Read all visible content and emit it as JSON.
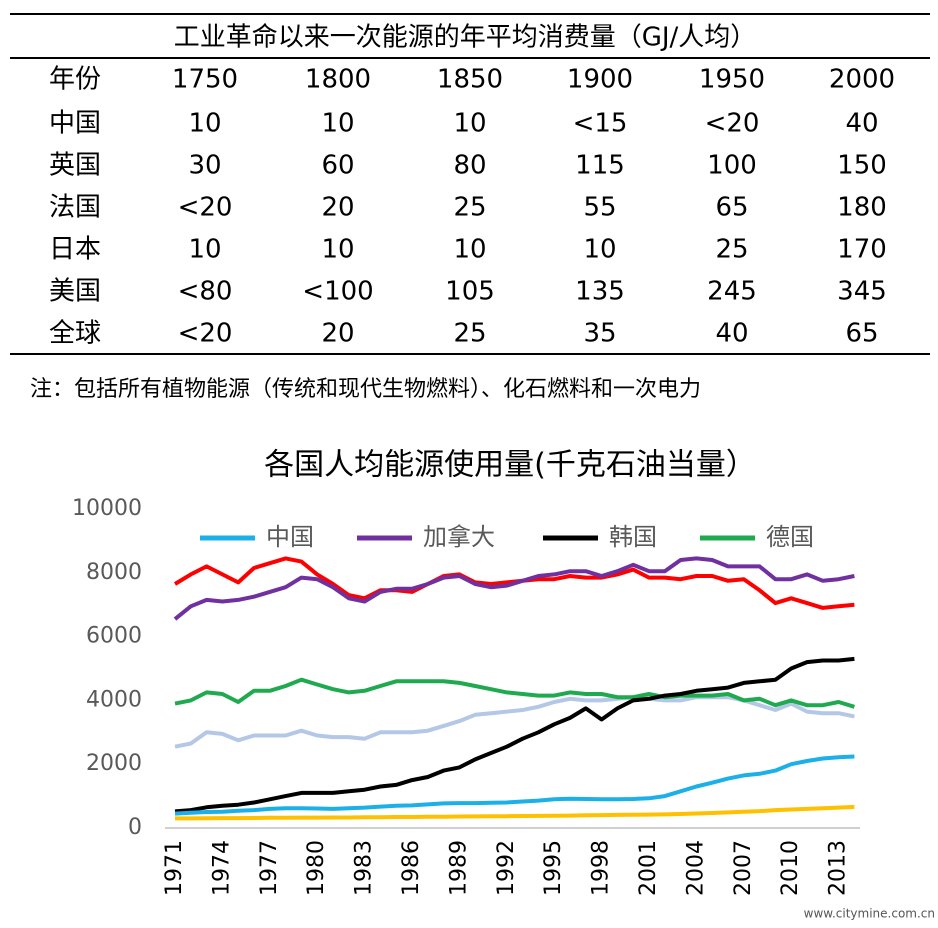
{
  "table": {
    "title": "工业革命以来一次能源的年平均消费量（GJ/人均）",
    "header": [
      "年份",
      "1750",
      "1800",
      "1850",
      "1900",
      "1950",
      "2000"
    ],
    "rows": [
      [
        "中国",
        "10",
        "10",
        "10",
        "<15",
        "<20",
        "40"
      ],
      [
        "英国",
        "30",
        "60",
        "80",
        "115",
        "100",
        "150"
      ],
      [
        "法国",
        "<20",
        "20",
        "25",
        "55",
        "65",
        "180"
      ],
      [
        "日本",
        "10",
        "10",
        "10",
        "10",
        "25",
        "170"
      ],
      [
        "美国",
        "<80",
        "<100",
        "105",
        "135",
        "245",
        "345"
      ],
      [
        "全球",
        "<20",
        "20",
        "25",
        "35",
        "40",
        "65"
      ]
    ]
  },
  "note": "注：包括所有植物能源（传统和现代生物燃料）、化石燃料和一次电力",
  "chart_data": {
    "type": "line",
    "title": "各国人均能源使用量(千克石油当量）",
    "categories": [
      1971,
      null,
      null,
      1974,
      null,
      null,
      1977,
      null,
      null,
      1980,
      null,
      null,
      1983,
      null,
      null,
      1986,
      null,
      null,
      1989,
      null,
      null,
      1992,
      null,
      null,
      1995,
      null,
      null,
      1998,
      null,
      null,
      2001,
      null,
      null,
      2004,
      null,
      null,
      2007,
      null,
      null,
      2010,
      null,
      null,
      2013,
      null
    ],
    "ylim": [
      0,
      10000
    ],
    "yticks": [
      0,
      2000,
      4000,
      6000,
      8000,
      10000
    ],
    "grid": false,
    "legend": "top",
    "series": [
      {
        "name": "中国",
        "color": "#1bb0e8",
        "values": [
          450,
          480,
          500,
          510,
          540,
          560,
          600,
          620,
          620,
          610,
          600,
          620,
          640,
          670,
          700,
          710,
          740,
          770,
          780,
          780,
          790,
          800,
          830,
          860,
          900,
          920,
          910,
          900,
          900,
          910,
          930,
          1000,
          1150,
          1300,
          1420,
          1550,
          1650,
          1700,
          1800,
          2000,
          2100,
          2180,
          2220,
          2240
        ]
      },
      {
        "name": "加拿大",
        "color": "#7030a0",
        "values": [
          6550,
          6950,
          7150,
          7100,
          7150,
          7250,
          7400,
          7550,
          7850,
          7800,
          7550,
          7200,
          7100,
          7400,
          7500,
          7500,
          7650,
          7850,
          7900,
          7650,
          7550,
          7600,
          7750,
          7900,
          7950,
          8050,
          8050,
          7900,
          8050,
          8250,
          8050,
          8050,
          8400,
          8450,
          8400,
          8200,
          8200,
          8200,
          7800,
          7800,
          7950,
          7750,
          7800,
          7900
        ]
      },
      {
        "name": "韩国",
        "color": "#000000",
        "values": [
          520,
          560,
          650,
          700,
          730,
          800,
          900,
          1000,
          1100,
          1100,
          1100,
          1150,
          1200,
          1300,
          1350,
          1500,
          1600,
          1800,
          1900,
          2150,
          2350,
          2550,
          2800,
          3000,
          3250,
          3450,
          3750,
          3400,
          3750,
          4000,
          4050,
          4150,
          4200,
          4300,
          4350,
          4400,
          4550,
          4600,
          4650,
          5000,
          5200,
          5250,
          5250,
          5300
        ]
      },
      {
        "name": "德国",
        "color": "#1faa50",
        "values": [
          3900,
          4000,
          4250,
          4200,
          3950,
          4300,
          4300,
          4450,
          4650,
          4500,
          4350,
          4250,
          4300,
          4450,
          4600,
          4600,
          4600,
          4600,
          4550,
          4450,
          4350,
          4250,
          4200,
          4150,
          4150,
          4250,
          4200,
          4200,
          4100,
          4100,
          4200,
          4100,
          4150,
          4150,
          4150,
          4200,
          4000,
          4050,
          3850,
          4000,
          3850,
          3850,
          3950,
          3800
        ]
      },
      {
        "color": "#ff0000",
        "values": [
          7650,
          7950,
          8200,
          7950,
          7700,
          8150,
          8300,
          8450,
          8350,
          7950,
          7650,
          7300,
          7200,
          7450,
          7450,
          7400,
          7650,
          7900,
          7950,
          7700,
          7650,
          7700,
          7750,
          7800,
          7800,
          7900,
          7850,
          7850,
          7950,
          8100,
          7850,
          7850,
          7800,
          7900,
          7900,
          7750,
          7800,
          7450,
          7050,
          7200,
          7050,
          6900,
          6950,
          7000
        ]
      },
      {
        "color": "#b4c7e7",
        "values": [
          2550,
          2650,
          3000,
          2950,
          2750,
          2900,
          2900,
          2900,
          3050,
          2900,
          2850,
          2850,
          2800,
          3000,
          3000,
          3000,
          3050,
          3200,
          3350,
          3550,
          3600,
          3650,
          3700,
          3800,
          3950,
          4050,
          4000,
          4000,
          4050,
          4100,
          4050,
          4000,
          4000,
          4100,
          4100,
          4100,
          4000,
          3850,
          3700,
          3900,
          3650,
          3600,
          3600,
          3500
        ]
      },
      {
        "color": "#ffc000",
        "values": [
          300,
          300,
          305,
          310,
          310,
          315,
          320,
          320,
          325,
          325,
          330,
          330,
          335,
          340,
          345,
          345,
          350,
          355,
          360,
          365,
          370,
          370,
          375,
          380,
          385,
          390,
          400,
          405,
          410,
          415,
          420,
          425,
          440,
          455,
          470,
          490,
          510,
          530,
          560,
          580,
          600,
          620,
          640,
          660
        ]
      }
    ]
  },
  "watermark": "www.citymine.com.cn"
}
